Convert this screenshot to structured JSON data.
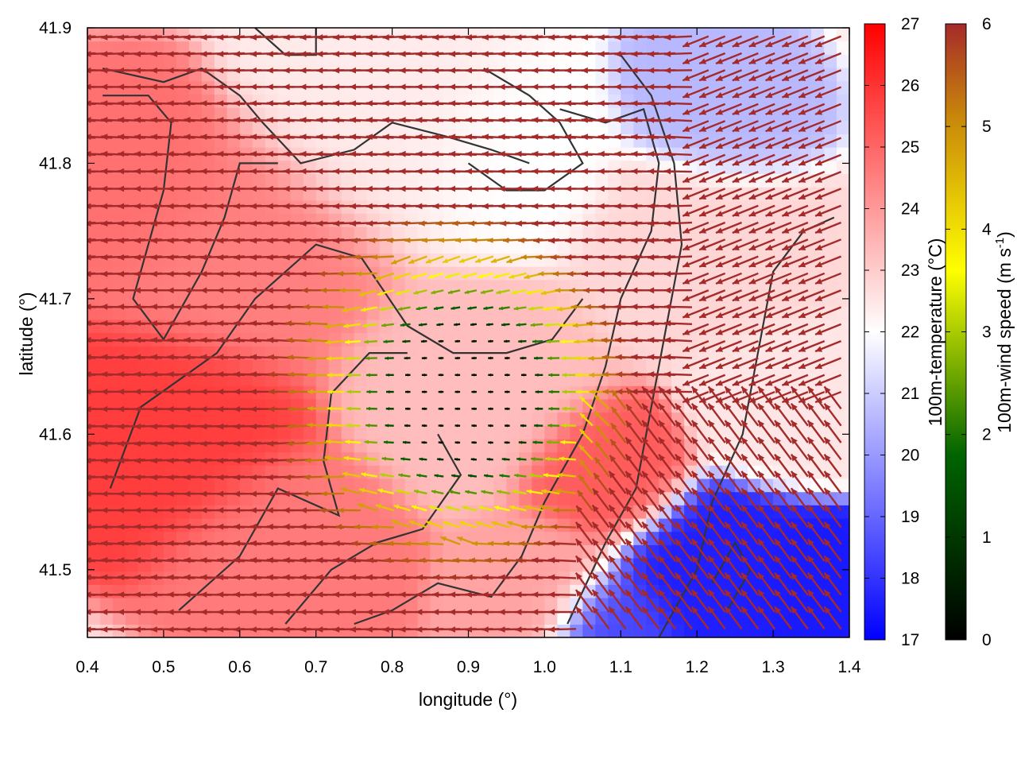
{
  "chart_data": {
    "type": "heatmap",
    "title": "",
    "xlabel": "longitude (°)",
    "ylabel": "latitude (°)",
    "xlim": [
      0.4,
      1.4
    ],
    "ylim": [
      41.45,
      41.9
    ],
    "xticks": [
      "0.4",
      "0.5",
      "0.6",
      "0.7",
      "0.8",
      "0.9",
      "1.0",
      "1.1",
      "1.2",
      "1.3",
      "1.4"
    ],
    "yticks": [
      "41.5",
      "41.6",
      "41.7",
      "41.8",
      "41.9"
    ],
    "grid": false,
    "fields": {
      "temperature": {
        "label": "100m-temperature (°C)",
        "range": [
          17,
          27
        ],
        "ticks": [
          "17",
          "18",
          "19",
          "20",
          "21",
          "22",
          "23",
          "24",
          "25",
          "26",
          "27"
        ],
        "colormap": [
          "#0000ff",
          "#ffffff",
          "#ff0000"
        ]
      },
      "wind_speed": {
        "label_main": "100m-wind speed (m s",
        "label_exp": "-1",
        "label_close": ")",
        "range": [
          0,
          6
        ],
        "ticks": [
          "0",
          "1",
          "2",
          "3",
          "4",
          "5",
          "6"
        ],
        "colormap": [
          "#000000",
          "#006400",
          "#ffff00",
          "#c8860a",
          "#a52a2a"
        ]
      }
    },
    "temperature_features": [
      {
        "lon": 0.52,
        "lat": 41.6,
        "value": 25.8,
        "spread": 0.09
      },
      {
        "lon": 0.62,
        "lat": 41.73,
        "value": 24.5,
        "spread": 0.1
      },
      {
        "lon": 0.45,
        "lat": 41.78,
        "value": 24.8,
        "spread": 0.08
      },
      {
        "lon": 0.66,
        "lat": 41.52,
        "value": 24.6,
        "spread": 0.08
      },
      {
        "lon": 0.9,
        "lat": 41.64,
        "value": 23.3,
        "spread": 0.09
      },
      {
        "lon": 1.08,
        "lat": 41.57,
        "value": 25.2,
        "spread": 0.06
      },
      {
        "lon": 0.8,
        "lat": 41.82,
        "value": 22.4,
        "spread": 0.1
      },
      {
        "lon": 0.95,
        "lat": 41.8,
        "value": 22.0,
        "spread": 0.08
      },
      {
        "lon": 1.18,
        "lat": 41.74,
        "value": 22.8,
        "spread": 0.08
      },
      {
        "lon": 1.22,
        "lat": 41.84,
        "value": 20.6,
        "spread": 0.06
      },
      {
        "lon": 1.3,
        "lat": 41.62,
        "value": 22.5,
        "spread": 0.06
      },
      {
        "lon": 1.22,
        "lat": 41.5,
        "value": 17.6,
        "spread": 0.07
      },
      {
        "lon": 1.34,
        "lat": 41.49,
        "value": 17.5,
        "spread": 0.05
      },
      {
        "lon": 1.09,
        "lat": 41.46,
        "value": 18.4,
        "spread": 0.05
      },
      {
        "lon": 0.99,
        "lat": 41.49,
        "value": 23.8,
        "spread": 0.06
      }
    ],
    "wind_field": {
      "lon_range": [
        0.4,
        1.4
      ],
      "lat_range": [
        41.45,
        41.9
      ],
      "convergence_center": {
        "lon": 0.9,
        "lat": 41.63
      },
      "calm_radius": {
        "lon": 0.12,
        "lat": 0.07
      },
      "max_speed": 6
    },
    "contour_lines": [
      [
        [
          0.42,
          41.87
        ],
        [
          0.5,
          41.86
        ],
        [
          0.55,
          41.87
        ],
        [
          0.6,
          41.85
        ],
        [
          0.63,
          41.83
        ],
        [
          0.68,
          41.8
        ],
        [
          0.75,
          41.81
        ],
        [
          0.8,
          41.83
        ],
        [
          0.87,
          41.82
        ],
        [
          0.93,
          41.81
        ],
        [
          0.98,
          41.8
        ]
      ],
      [
        [
          0.42,
          41.85
        ],
        [
          0.48,
          41.85
        ],
        [
          0.51,
          41.83
        ],
        [
          0.5,
          41.78
        ],
        [
          0.48,
          41.74
        ],
        [
          0.46,
          41.7
        ],
        [
          0.5,
          41.67
        ],
        [
          0.55,
          41.72
        ],
        [
          0.58,
          41.76
        ],
        [
          0.6,
          41.8
        ],
        [
          0.65,
          41.8
        ]
      ],
      [
        [
          0.43,
          41.56
        ],
        [
          0.47,
          41.62
        ],
        [
          0.52,
          41.64
        ],
        [
          0.57,
          41.66
        ],
        [
          0.62,
          41.7
        ],
        [
          0.7,
          41.74
        ],
        [
          0.76,
          41.73
        ],
        [
          0.82,
          41.68
        ],
        [
          0.88,
          41.66
        ],
        [
          0.95,
          41.66
        ],
        [
          1.01,
          41.67
        ],
        [
          1.05,
          41.7
        ]
      ],
      [
        [
          0.52,
          41.47
        ],
        [
          0.6,
          41.51
        ],
        [
          0.65,
          41.56
        ],
        [
          0.73,
          41.54
        ],
        [
          0.71,
          41.58
        ],
        [
          0.72,
          41.63
        ],
        [
          0.77,
          41.66
        ],
        [
          0.82,
          41.66
        ]
      ],
      [
        [
          0.66,
          41.46
        ],
        [
          0.72,
          41.5
        ],
        [
          0.78,
          41.52
        ],
        [
          0.84,
          41.53
        ],
        [
          0.89,
          41.57
        ],
        [
          0.86,
          41.6
        ]
      ],
      [
        [
          0.75,
          41.46
        ],
        [
          0.8,
          41.47
        ],
        [
          0.86,
          41.49
        ],
        [
          0.93,
          41.48
        ],
        [
          0.97,
          41.51
        ],
        [
          1.0,
          41.55
        ],
        [
          1.05,
          41.6
        ],
        [
          1.08,
          41.65
        ],
        [
          1.1,
          41.7
        ],
        [
          1.14,
          41.75
        ],
        [
          1.15,
          41.8
        ],
        [
          1.13,
          41.84
        ],
        [
          1.08,
          41.83
        ],
        [
          1.02,
          41.84
        ]
      ],
      [
        [
          1.03,
          41.46
        ],
        [
          1.08,
          41.52
        ],
        [
          1.12,
          41.56
        ],
        [
          1.14,
          41.62
        ],
        [
          1.16,
          41.68
        ],
        [
          1.18,
          41.74
        ],
        [
          1.17,
          41.8
        ],
        [
          1.14,
          41.85
        ],
        [
          1.1,
          41.88
        ]
      ],
      [
        [
          1.15,
          41.45
        ],
        [
          1.2,
          41.5
        ],
        [
          1.22,
          41.55
        ],
        [
          1.26,
          41.6
        ],
        [
          1.28,
          41.66
        ],
        [
          1.3,
          41.72
        ],
        [
          1.34,
          41.75
        ],
        [
          1.38,
          41.76
        ]
      ],
      [
        [
          0.62,
          41.9
        ],
        [
          0.66,
          41.88
        ],
        [
          0.7,
          41.88
        ],
        [
          0.7,
          41.9
        ]
      ],
      [
        [
          0.92,
          41.87
        ],
        [
          0.98,
          41.85
        ],
        [
          1.02,
          41.83
        ],
        [
          1.05,
          41.8
        ],
        [
          1.0,
          41.78
        ],
        [
          0.95,
          41.78
        ],
        [
          0.9,
          41.8
        ]
      ],
      [
        [
          1.22,
          41.49
        ],
        [
          1.25,
          41.52
        ],
        [
          1.27,
          41.5
        ],
        [
          1.24,
          41.47
        ]
      ]
    ]
  }
}
